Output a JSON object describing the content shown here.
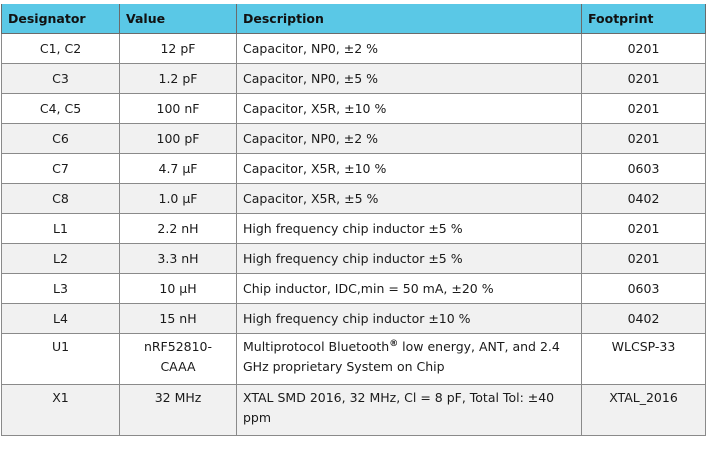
{
  "headers": [
    "Designator",
    "Value",
    "Description",
    "Footprint"
  ],
  "rows": [
    {
      "designator": "C1, C2",
      "value": "12 pF",
      "description": "Capacitor, NP0, ±2 %",
      "footprint": "0201"
    },
    {
      "designator": "C3",
      "value": "1.2 pF",
      "description": "Capacitor, NP0, ±5 %",
      "footprint": "0201"
    },
    {
      "designator": "C4, C5",
      "value": "100 nF",
      "description": "Capacitor, X5R, ±10 %",
      "footprint": "0201"
    },
    {
      "designator": "C6",
      "value": "100 pF",
      "description": "Capacitor, NP0, ±2 %",
      "footprint": "0201"
    },
    {
      "designator": "C7",
      "value": "4.7 µF",
      "description": "Capacitor, X5R, ±10 %",
      "footprint": "0603"
    },
    {
      "designator": "C8",
      "value": "1.0 µF",
      "description": "Capacitor, X5R, ±5 %",
      "footprint": "0402"
    },
    {
      "designator": "L1",
      "value": "2.2 nH",
      "description": "High frequency chip inductor ±5 %",
      "footprint": "0201"
    },
    {
      "designator": "L2",
      "value": "3.3 nH",
      "description": "High frequency chip inductor ±5 %",
      "footprint": "0201"
    },
    {
      "designator": "L3",
      "value": "10 µH",
      "description": "Chip inductor, IDC,min = 50 mA, ±20 %",
      "footprint": "0603"
    },
    {
      "designator": "L4",
      "value": "15 nH",
      "description": "High frequency chip inductor ±10 %",
      "footprint": "0402"
    },
    {
      "designator": "U1",
      "value_line1": "nRF52810-",
      "value_line2": "CAAA",
      "description_before": "Multiprotocol Bluetooth",
      "description_sup": "®",
      "description_after": " low energy, ANT, and 2.4 GHz proprietary System on Chip",
      "footprint": "WLCSP-33"
    },
    {
      "designator": "X1",
      "value": "32 MHz",
      "description": "XTAL SMD 2016, 32 MHz, Cl = 8 pF, Total Tol: ±40 ppm",
      "footprint": "XTAL_2016"
    }
  ]
}
